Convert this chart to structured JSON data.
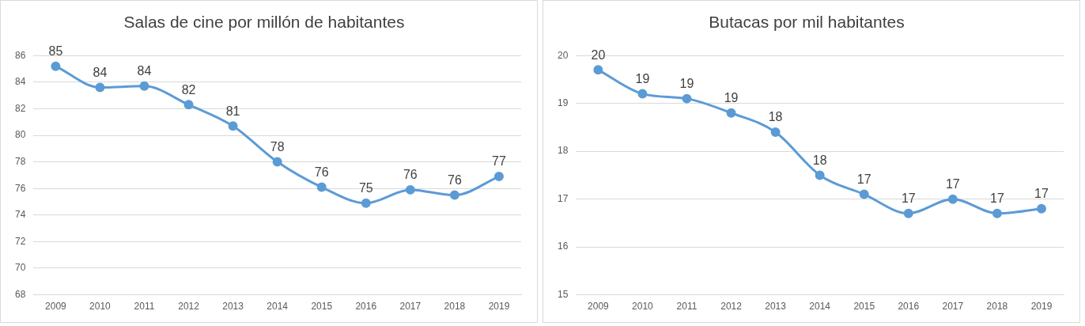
{
  "chart_data": [
    {
      "type": "line",
      "title": "Salas de cine por millón de habitantes",
      "categories": [
        "2009",
        "2010",
        "2011",
        "2012",
        "2013",
        "2014",
        "2015",
        "2016",
        "2017",
        "2018",
        "2019"
      ],
      "series": [
        {
          "color": "#5b9bd5",
          "values": [
            85.2,
            83.6,
            83.7,
            82.3,
            80.7,
            78.0,
            76.1,
            74.9,
            75.9,
            75.5,
            76.9
          ],
          "value_labels": [
            "85",
            "84",
            "84",
            "82",
            "81",
            "78",
            "76",
            "75",
            "76",
            "76",
            "77"
          ]
        }
      ],
      "ylim": [
        68,
        86
      ],
      "yticks": [
        68,
        70,
        72,
        74,
        76,
        78,
        80,
        82,
        84,
        86
      ],
      "grid": "y",
      "legend": false,
      "marker": "circle",
      "line_style": "solid"
    },
    {
      "type": "line",
      "title": "Butacas por mil habitantes",
      "categories": [
        "2009",
        "2010",
        "2011",
        "2012",
        "2013",
        "2014",
        "2015",
        "2016",
        "2017",
        "2018",
        "2019"
      ],
      "series": [
        {
          "color": "#5b9bd5",
          "values": [
            19.7,
            19.2,
            19.1,
            18.8,
            18.4,
            17.5,
            17.1,
            16.7,
            17.0,
            16.7,
            16.8
          ],
          "value_labels": [
            "20",
            "19",
            "19",
            "19",
            "18",
            "18",
            "17",
            "17",
            "17",
            "17",
            "17"
          ]
        }
      ],
      "ylim": [
        15,
        20
      ],
      "yticks": [
        15,
        16,
        17,
        18,
        19,
        20
      ],
      "grid": "y",
      "legend": false,
      "marker": "circle",
      "line_style": "solid"
    }
  ]
}
